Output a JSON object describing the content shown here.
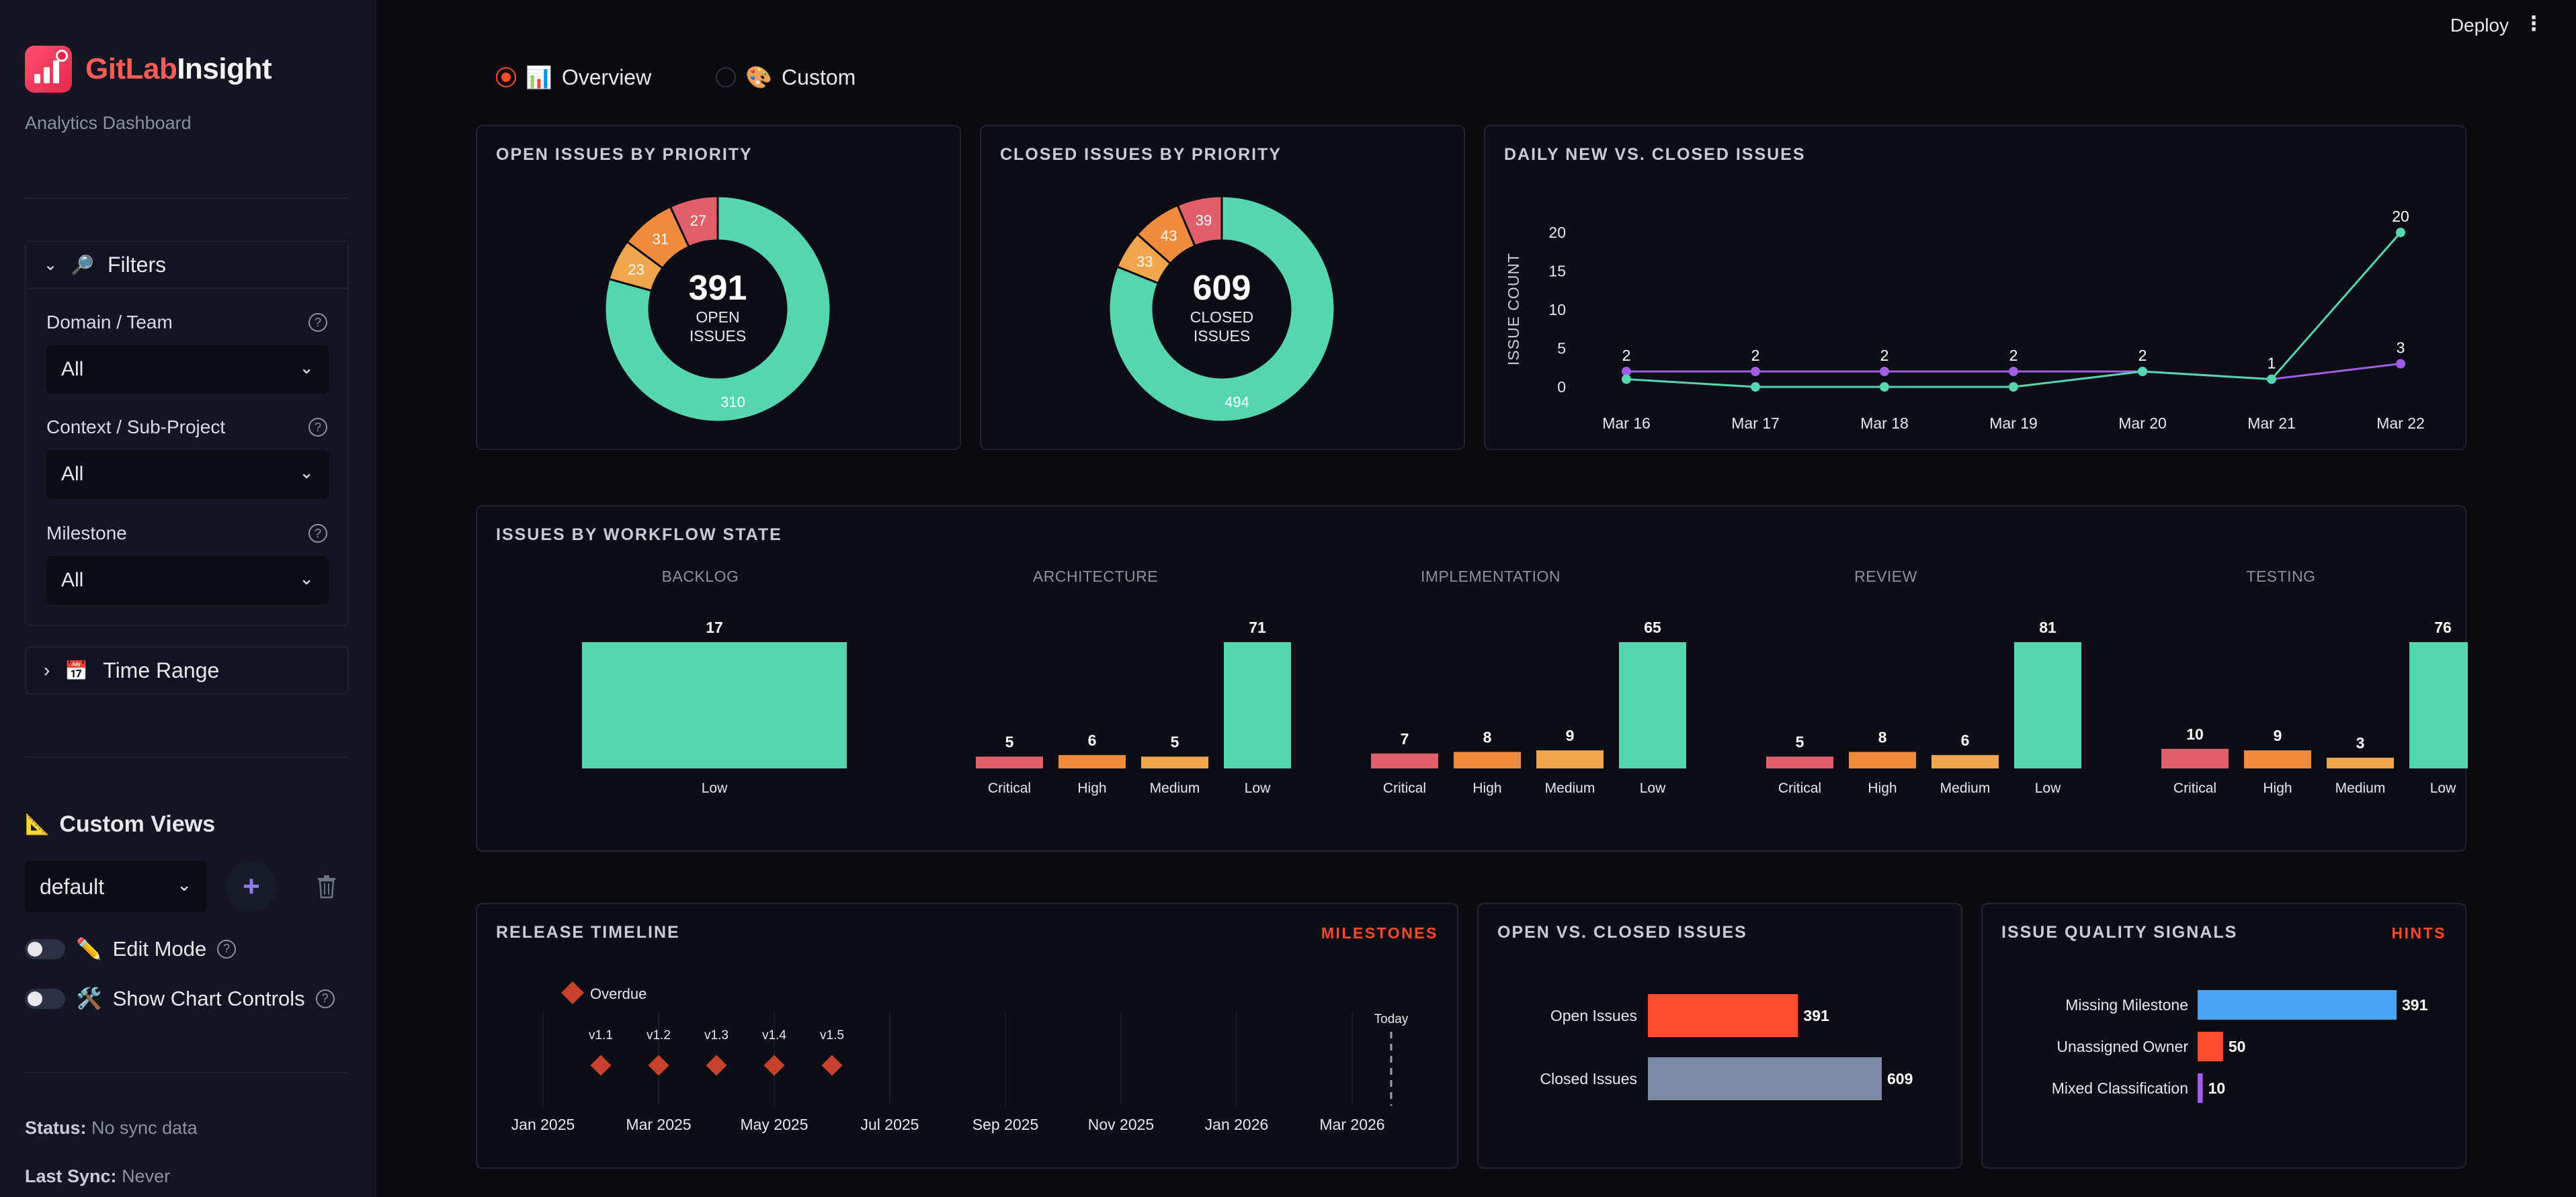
{
  "app": {
    "brand_a": "GitLab",
    "brand_b": "Insight",
    "subtitle": "Analytics Dashboard"
  },
  "sidebar": {
    "filters": {
      "label": "Filters",
      "fields": [
        {
          "label": "Domain / Team",
          "value": "All"
        },
        {
          "label": "Context / Sub-Project",
          "value": "All"
        },
        {
          "label": "Milestone",
          "value": "All"
        }
      ]
    },
    "time_range": {
      "label": "Time Range"
    },
    "custom_views": {
      "title": "Custom Views",
      "selected": "default"
    },
    "toggles": [
      {
        "label": "Edit Mode"
      },
      {
        "label": "Show Chart Controls"
      }
    ],
    "status": {
      "status_label": "Status:",
      "status_value": "No sync data",
      "sync_label": "Last Sync:",
      "sync_value": "Never"
    }
  },
  "topbar": {
    "deploy": "Deploy"
  },
  "tabs": [
    {
      "label": "Overview",
      "icon": "bar-chart-emoji",
      "active": true
    },
    {
      "label": "Custom",
      "icon": "palette-emoji",
      "active": false
    }
  ],
  "colors": {
    "accent": "#ff4b2b",
    "low": "#55d6b0",
    "medium": "#f2a54b",
    "high": "#f08a3c",
    "critical": "#e0606a",
    "new_line": "#a15de8",
    "closed_line": "#55d6b0"
  },
  "open_priority": {
    "title": "OPEN ISSUES BY PRIORITY",
    "total": "391",
    "label1": "OPEN",
    "label2": "ISSUES",
    "slices": [
      {
        "name": "Low",
        "value": 310
      },
      {
        "name": "Medium",
        "value": 23
      },
      {
        "name": "High",
        "value": 31
      },
      {
        "name": "Critical",
        "value": 27
      }
    ]
  },
  "closed_priority": {
    "title": "CLOSED ISSUES BY PRIORITY",
    "total": "609",
    "label1": "CLOSED",
    "label2": "ISSUES",
    "slices": [
      {
        "name": "Low",
        "value": 494
      },
      {
        "name": "Medium",
        "value": 33
      },
      {
        "name": "High",
        "value": 43
      },
      {
        "name": "Critical",
        "value": 39
      }
    ]
  },
  "daily": {
    "title": "DAILY NEW VS. CLOSED ISSUES",
    "ylabel": "ISSUE COUNT"
  },
  "workflow": {
    "title": "ISSUES BY WORKFLOW STATE"
  },
  "release": {
    "title": "RELEASE TIMELINE",
    "link": "MILESTONES",
    "legend": "Overdue",
    "today": "Today"
  },
  "open_closed": {
    "title": "OPEN VS. CLOSED ISSUES"
  },
  "quality": {
    "title": "ISSUE QUALITY SIGNALS",
    "link": "HINTS"
  },
  "chart_data": [
    {
      "type": "pie",
      "title": "OPEN ISSUES BY PRIORITY",
      "categories": [
        "Low",
        "Medium",
        "High",
        "Critical"
      ],
      "values": [
        310,
        23,
        31,
        27
      ]
    },
    {
      "type": "pie",
      "title": "CLOSED ISSUES BY PRIORITY",
      "categories": [
        "Low",
        "Medium",
        "High",
        "Critical"
      ],
      "values": [
        494,
        33,
        43,
        39
      ]
    },
    {
      "type": "line",
      "title": "DAILY NEW VS. CLOSED ISSUES",
      "ylabel": "ISSUE COUNT",
      "x": [
        "Mar 16",
        "Mar 17",
        "Mar 18",
        "Mar 19",
        "Mar 20",
        "Mar 21",
        "Mar 22"
      ],
      "ylim": [
        0,
        20
      ],
      "yticks": [
        0,
        5,
        10,
        15,
        20
      ],
      "series": [
        {
          "values": [
            2,
            2,
            2,
            2,
            2,
            1,
            3
          ],
          "color": "#a15de8",
          "labeled": true
        },
        {
          "values": [
            1,
            0,
            0,
            0,
            2,
            1,
            20
          ],
          "color": "#55d6b0",
          "labeled": false
        }
      ],
      "point_labels": [
        2,
        2,
        2,
        2,
        2,
        1,
        20
      ],
      "extra_label": {
        "index": 6,
        "text": "3"
      }
    },
    {
      "type": "bar",
      "title": "ISSUES BY WORKFLOW STATE",
      "groups": [
        {
          "name": "BACKLOG",
          "categories": [
            "Low"
          ],
          "values": [
            17
          ]
        },
        {
          "name": "ARCHITECTURE",
          "categories": [
            "Critical",
            "High",
            "Medium",
            "Low"
          ],
          "values": [
            5,
            6,
            5,
            71
          ]
        },
        {
          "name": "IMPLEMENTATION",
          "categories": [
            "Critical",
            "High",
            "Medium",
            "Low"
          ],
          "values": [
            7,
            8,
            9,
            65
          ]
        },
        {
          "name": "REVIEW",
          "categories": [
            "Critical",
            "High",
            "Medium",
            "Low"
          ],
          "values": [
            5,
            8,
            6,
            81
          ]
        },
        {
          "name": "TESTING",
          "categories": [
            "Critical",
            "High",
            "Medium",
            "Low"
          ],
          "values": [
            10,
            9,
            3,
            76
          ]
        }
      ]
    },
    {
      "type": "scatter",
      "title": "RELEASE TIMELINE",
      "x_ticks": [
        "Jan 2025",
        "Mar 2025",
        "May 2025",
        "Jul 2025",
        "Sep 2025",
        "Nov 2025",
        "Jan 2026",
        "Mar 2026"
      ],
      "x_range": [
        "2025-01-01",
        "2026-03-01"
      ],
      "milestones": [
        {
          "name": "v1.1",
          "date": "2025-02-01",
          "status": "Overdue"
        },
        {
          "name": "v1.2",
          "date": "2025-03-01",
          "status": "Overdue"
        },
        {
          "name": "v1.3",
          "date": "2025-04-01",
          "status": "Overdue"
        },
        {
          "name": "v1.4",
          "date": "2025-05-01",
          "status": "Overdue"
        },
        {
          "name": "v1.5",
          "date": "2025-06-01",
          "status": "Overdue"
        }
      ],
      "today": "2026-03-22"
    },
    {
      "type": "bar",
      "title": "OPEN VS. CLOSED ISSUES",
      "categories": [
        "Open Issues",
        "Closed Issues"
      ],
      "values": [
        391,
        609
      ],
      "colors": [
        "#ff4b2b",
        "#7b8aa5"
      ]
    },
    {
      "type": "bar",
      "title": "ISSUE QUALITY SIGNALS",
      "categories": [
        "Missing Milestone",
        "Unassigned Owner",
        "Mixed Classification"
      ],
      "values": [
        391,
        50,
        10
      ],
      "colors": [
        "#4aa6f5",
        "#ff4b2b",
        "#a15de8"
      ]
    }
  ]
}
